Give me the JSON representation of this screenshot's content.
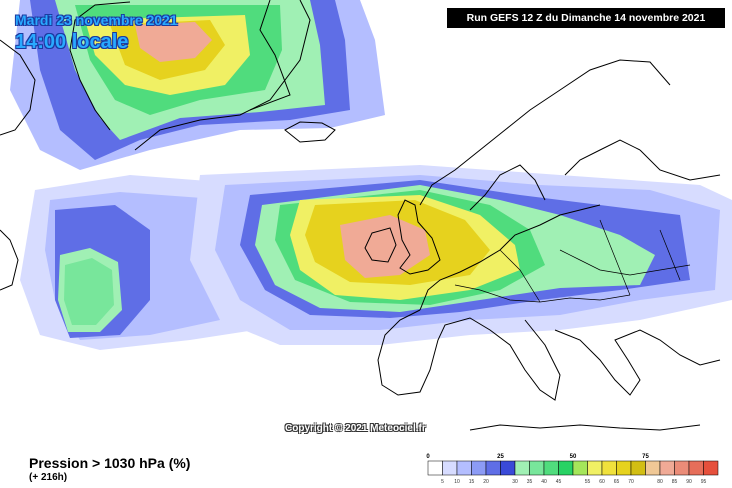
{
  "header": {
    "date": "Mardi 23 novembre 2021",
    "time": "14:00 locale",
    "run": "Run GEFS 12 Z du Dimanche 14 novembre 2021"
  },
  "copyright": "Copyright © 2021 Meteociel.fr",
  "parameter": {
    "title": "Pression > 1030 hPa (%)",
    "lead_time": "(+ 216h)"
  },
  "legend": {
    "major_labels": [
      "0",
      "25",
      "50",
      "75"
    ],
    "minor_labels": [
      "5",
      "10",
      "15",
      "20",
      "",
      "30",
      "35",
      "40",
      "45",
      "",
      "55",
      "60",
      "65",
      "70",
      "",
      "80",
      "85",
      "90",
      "95"
    ],
    "colors": [
      "#ffffff",
      "#d7dcff",
      "#b4beff",
      "#8c9bf5",
      "#5f6ee6",
      "#3a4ad8",
      "#a0f0b4",
      "#78e69b",
      "#50dc7d",
      "#28d264",
      "#a5e65a",
      "#f0f064",
      "#f0e13c",
      "#e6d21e",
      "#d2be14",
      "#f0c896",
      "#f0aa96",
      "#eb8c78",
      "#e66e5a",
      "#e6503c"
    ]
  }
}
